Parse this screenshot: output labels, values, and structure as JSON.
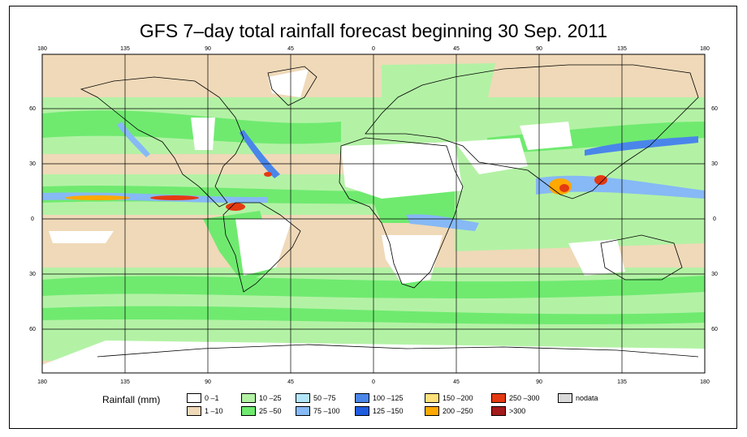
{
  "title": "GFS 7–day total rainfall forecast beginning 30 Sep. 2011",
  "lon_ticks": [
    "180",
    "135",
    "90",
    "45",
    "0",
    "45",
    "90",
    "135",
    "180"
  ],
  "lat_ticks": [
    "60",
    "30",
    "0",
    "30",
    "60"
  ],
  "legend": {
    "label": "Rainfall (mm)",
    "items": [
      {
        "label": "0 –1",
        "color": "#ffffff"
      },
      {
        "label": "1 –10",
        "color": "#efd9b8"
      },
      {
        "label": "10 –25",
        "color": "#b3f2a5"
      },
      {
        "label": "25 –50",
        "color": "#6fea6f"
      },
      {
        "label": "50 –75",
        "color": "#b3e6fa"
      },
      {
        "label": "75 –100",
        "color": "#86b9f5"
      },
      {
        "label": "100 –125",
        "color": "#4a86ea"
      },
      {
        "label": "125 –150",
        "color": "#1f5ce0"
      },
      {
        "label": "150 –200",
        "color": "#ffe07a"
      },
      {
        "label": "200 –250",
        "color": "#ffa800"
      },
      {
        "label": "250 –300",
        "color": "#e43a12"
      },
      {
        "label": ">300",
        "color": "#a31b1b"
      },
      {
        "label": "nodata",
        "color": "#d9d9d9"
      }
    ]
  }
}
